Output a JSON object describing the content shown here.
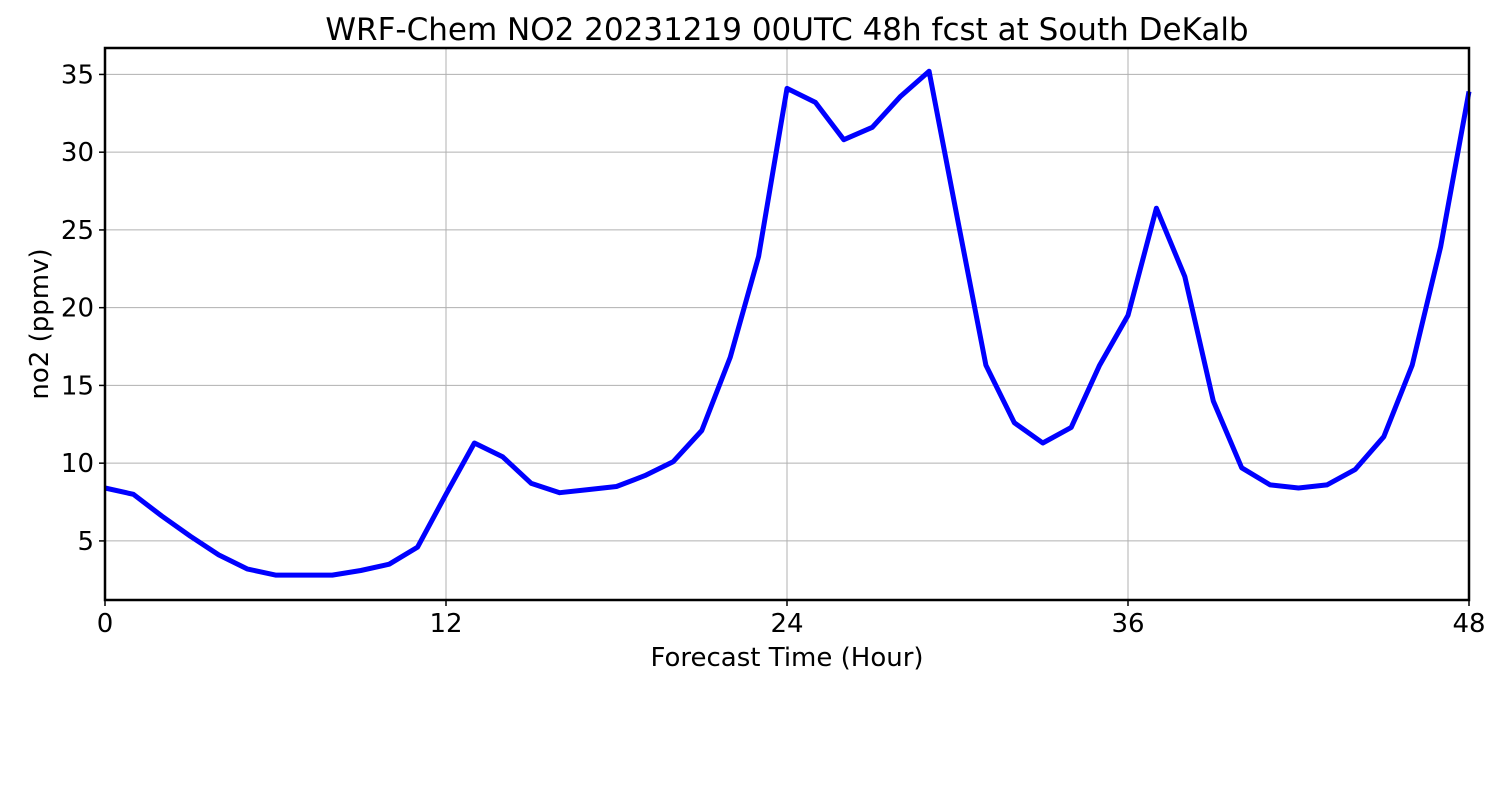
{
  "chart_data": {
    "type": "line",
    "title": "WRF-Chem NO2  20231219 00UTC 48h fcst at South DeKalb",
    "xlabel": "Forecast Time (Hour)",
    "ylabel": "no2  (ppmv)",
    "xlim": [
      0,
      48
    ],
    "ylim": [
      1.2,
      36.7
    ],
    "xticks": [
      0,
      12,
      24,
      36,
      48
    ],
    "yticks": [
      5,
      10,
      15,
      20,
      25,
      30,
      35
    ],
    "grid": true,
    "series": [
      {
        "color": "#0000ff",
        "x": [
          0,
          1,
          2,
          3,
          4,
          5,
          6,
          7,
          8,
          9,
          10,
          11,
          12,
          13,
          14,
          15,
          16,
          17,
          18,
          19,
          20,
          21,
          22,
          23,
          24,
          25,
          26,
          27,
          28,
          29,
          30,
          31,
          32,
          33,
          34,
          35,
          36,
          37,
          38,
          39,
          40,
          41,
          42,
          43,
          44,
          45,
          46,
          47,
          48
        ],
        "y": [
          8.4,
          8.0,
          6.6,
          5.3,
          4.1,
          3.2,
          2.8,
          2.8,
          2.8,
          3.1,
          3.5,
          4.6,
          8.0,
          11.3,
          10.4,
          8.7,
          8.1,
          8.3,
          8.5,
          9.2,
          10.1,
          12.1,
          16.8,
          23.3,
          34.1,
          33.2,
          30.8,
          31.6,
          33.6,
          35.2,
          25.7,
          16.3,
          12.6,
          11.3,
          12.3,
          16.3,
          19.5,
          26.4,
          22.0,
          14.0,
          9.7,
          8.6,
          8.4,
          8.6,
          9.6,
          11.7,
          16.3,
          23.9,
          33.9
        ]
      }
    ]
  }
}
